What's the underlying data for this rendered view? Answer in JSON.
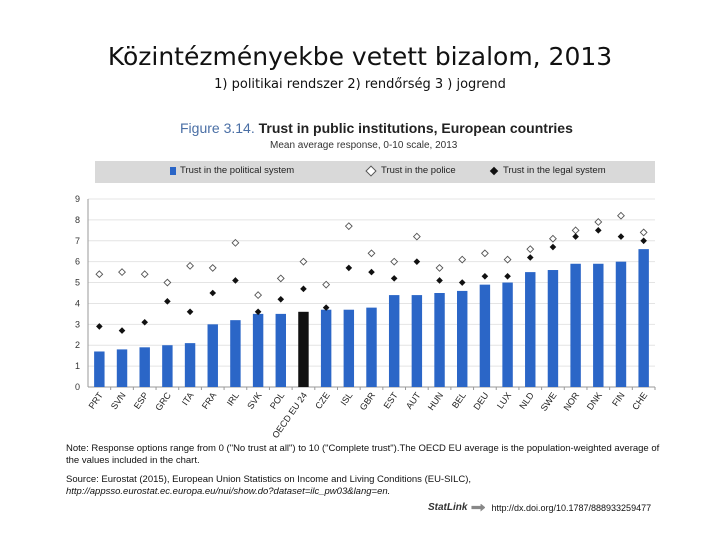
{
  "slide": {
    "title": "Közintézményekbe vetett bizalom, 2013",
    "subtitle": "1) politikai rendszer  2) rendőrség  3 ) jogrend"
  },
  "figure": {
    "label": "Figure 3.14.",
    "title": "Trust in public institutions, European countries",
    "subtitle": "Mean average response, 0-10 scale, 2013",
    "note": "Note: Response options range from 0 (\"No trust at all\") to 10 (\"Complete trust\").The OECD EU average is the population-weighted average of the values included in the chart.",
    "source_prefix": "Source: Eurostat (2015), European Union Statistics on Income and Living Conditions (EU-SILC), ",
    "source_link": "http://appsso.eurostat.ec.europa.eu/nui/show.do?dataset=ilc_pw03&lang=en.",
    "statlink_logo": "StatLink",
    "statlink_url": "http://dx.doi.org/10.1787/888933259477"
  },
  "chart_data": {
    "type": "bar",
    "title": "Trust in public institutions, European countries",
    "ylabel": "Mean average response, 0-10 scale, 2013",
    "ylim": [
      0,
      9
    ],
    "yticks": [
      0,
      1,
      2,
      3,
      4,
      5,
      6,
      7,
      8,
      9
    ],
    "grid": true,
    "legend_position": "top",
    "colors": {
      "bar": "#2b66c7",
      "highlight_bar": "#111111",
      "police_marker": "#555555",
      "legal_marker": "#111111"
    },
    "highlight_category": "OECD EU 24",
    "categories": [
      "PRT",
      "SVN",
      "ESP",
      "GRC",
      "ITA",
      "FRA",
      "IRL",
      "SVK",
      "POL",
      "OECD EU 24",
      "CZE",
      "ISL",
      "GBR",
      "EST",
      "AUT",
      "HUN",
      "BEL",
      "DEU",
      "LUX",
      "NLD",
      "SWE",
      "NOR",
      "DNK",
      "FIN",
      "CHE"
    ],
    "series": [
      {
        "name": "Trust in the political system",
        "kind": "bar",
        "values": [
          1.7,
          1.8,
          1.9,
          2.0,
          2.1,
          3.0,
          3.2,
          3.5,
          3.5,
          3.6,
          3.7,
          3.7,
          3.8,
          4.4,
          4.4,
          4.5,
          4.6,
          4.9,
          5.0,
          5.5,
          5.6,
          5.9,
          5.9,
          6.0,
          6.6
        ]
      },
      {
        "name": "Trust in the police",
        "kind": "open-diamond",
        "values": [
          5.4,
          5.5,
          5.4,
          5.0,
          5.8,
          5.7,
          6.9,
          4.4,
          5.2,
          6.0,
          4.9,
          7.7,
          6.4,
          6.0,
          7.2,
          5.7,
          6.1,
          6.4,
          6.1,
          6.6,
          7.1,
          7.5,
          7.9,
          8.2,
          7.4
        ]
      },
      {
        "name": "Trust in the legal system",
        "kind": "filled-diamond",
        "values": [
          2.9,
          2.7,
          3.1,
          4.1,
          3.6,
          4.5,
          5.1,
          3.6,
          4.2,
          4.7,
          3.8,
          5.7,
          5.5,
          5.2,
          6.0,
          5.1,
          5.0,
          5.3,
          5.3,
          6.2,
          6.7,
          7.2,
          7.5,
          7.2,
          7.0
        ]
      }
    ]
  }
}
